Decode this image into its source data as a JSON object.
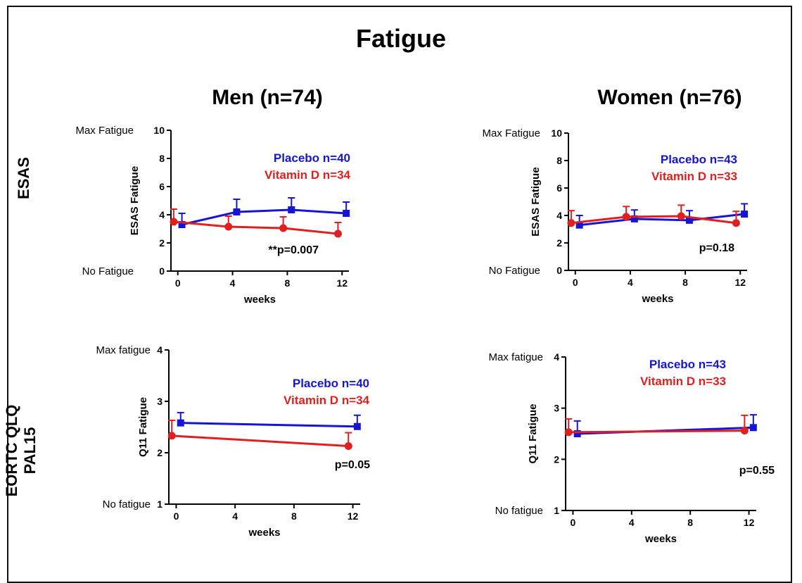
{
  "title": "Fatigue",
  "columns": [
    "Men (n=74)",
    "Women (n=76)"
  ],
  "rows": [
    [
      "ESAS"
    ],
    [
      "EORTC QLQ",
      "PAL15"
    ]
  ],
  "colors": {
    "placebo": "#1515d6",
    "vitamin_d": "#e02020",
    "axis": "#000000"
  },
  "chart_data": [
    {
      "type": "line",
      "panel": "ESAS - Men (n=74)",
      "xlabel": "weeks",
      "ylabel": "ESAS Fatigue",
      "xticks": [
        0,
        4,
        8,
        12
      ],
      "yticks": [
        0,
        2,
        4,
        6,
        8,
        10
      ],
      "xlim": [
        -0.5,
        12.5
      ],
      "ylim": [
        0,
        10
      ],
      "y_annotations": [
        {
          "y": 10,
          "text": "Max Fatigue"
        },
        {
          "y": 0,
          "text": "No Fatigue"
        }
      ],
      "p_value": "**p=0.007",
      "series": [
        {
          "name": "Placebo n=40",
          "color": "#1515d6",
          "marker": "square",
          "x": [
            0.3,
            4.3,
            8.3,
            12.3
          ],
          "y": [
            3.3,
            4.2,
            4.35,
            4.1
          ],
          "err": [
            0.8,
            0.9,
            0.85,
            0.8
          ]
        },
        {
          "name": "Vitamin D n=34",
          "color": "#e02020",
          "marker": "circle",
          "x": [
            -0.3,
            3.7,
            7.7,
            11.7
          ],
          "y": [
            3.5,
            3.15,
            3.05,
            2.65
          ],
          "err": [
            0.9,
            0.75,
            0.8,
            0.8
          ]
        }
      ]
    },
    {
      "type": "line",
      "panel": "ESAS - Women (n=76)",
      "xlabel": "weeks",
      "ylabel": "ESAS Fatigue",
      "xticks": [
        0,
        4,
        8,
        12
      ],
      "yticks": [
        0,
        2,
        4,
        6,
        8,
        10
      ],
      "xlim": [
        -0.5,
        12.5
      ],
      "ylim": [
        0,
        10
      ],
      "y_annotations": [
        {
          "y": 10,
          "text": "Max Fatigue"
        },
        {
          "y": 0,
          "text": "No Fatigue"
        }
      ],
      "p_value": "p=0.18",
      "series": [
        {
          "name": "Placebo n=43",
          "color": "#1515d6",
          "marker": "square",
          "x": [
            0.3,
            4.3,
            8.3,
            12.3
          ],
          "y": [
            3.3,
            3.75,
            3.65,
            4.1
          ],
          "err": [
            0.7,
            0.65,
            0.7,
            0.75
          ]
        },
        {
          "name": "Vitamin D n=33",
          "color": "#e02020",
          "marker": "circle",
          "x": [
            -0.3,
            3.7,
            7.7,
            11.7
          ],
          "y": [
            3.45,
            3.9,
            3.95,
            3.45
          ],
          "err": [
            0.9,
            0.75,
            0.8,
            0.85
          ]
        }
      ]
    },
    {
      "type": "line",
      "panel": "EORTC QLQ PAL15 - Men (n=74)",
      "xlabel": "weeks",
      "ylabel": "Q11 Fatigue",
      "xticks": [
        0,
        4,
        8,
        12
      ],
      "yticks": [
        1,
        2,
        3,
        4
      ],
      "xlim": [
        -0.5,
        12.5
      ],
      "ylim": [
        1,
        4
      ],
      "y_annotations": [
        {
          "y": 4,
          "text": "Max fatigue"
        },
        {
          "y": 1,
          "text": "No fatigue"
        }
      ],
      "p_value": "p=0.05",
      "series": [
        {
          "name": "Placebo n=40",
          "color": "#1515d6",
          "marker": "square",
          "x": [
            0.3,
            12.3
          ],
          "y": [
            2.58,
            2.51
          ],
          "err": [
            0.2,
            0.22
          ]
        },
        {
          "name": "Vitamin D n=34",
          "color": "#e02020",
          "marker": "circle",
          "x": [
            -0.3,
            11.7
          ],
          "y": [
            2.33,
            2.13
          ],
          "err": [
            0.3,
            0.26
          ]
        }
      ]
    },
    {
      "type": "line",
      "panel": "EORTC QLQ PAL15 - Women (n=76)",
      "xlabel": "weeks",
      "ylabel": "Q11 Fatigue",
      "xticks": [
        0,
        4,
        8,
        12
      ],
      "yticks": [
        1,
        2,
        3,
        4
      ],
      "xlim": [
        -0.5,
        12.5
      ],
      "ylim": [
        1,
        4
      ],
      "y_annotations": [
        {
          "y": 4,
          "text": "Max fatigue"
        },
        {
          "y": 1,
          "text": "No fatigue"
        }
      ],
      "p_value": "p=0.55",
      "series": [
        {
          "name": "Placebo n=43",
          "color": "#1515d6",
          "marker": "square",
          "x": [
            0.3,
            12.3
          ],
          "y": [
            2.5,
            2.62
          ],
          "err": [
            0.25,
            0.25
          ]
        },
        {
          "name": "Vitamin D n=33",
          "color": "#e02020",
          "marker": "circle",
          "x": [
            -0.3,
            11.7
          ],
          "y": [
            2.53,
            2.56
          ],
          "err": [
            0.26,
            0.3
          ]
        }
      ]
    }
  ]
}
